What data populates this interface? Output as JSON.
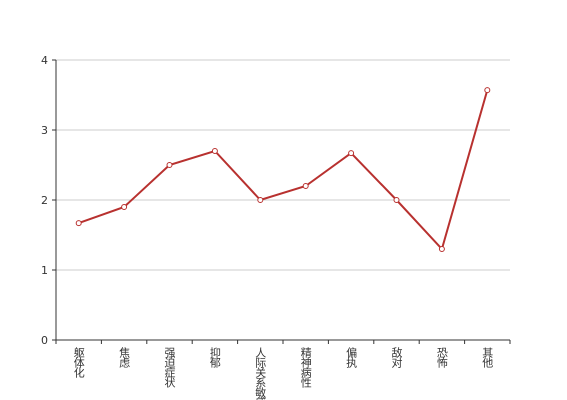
{
  "chart_data": {
    "type": "line",
    "categories": [
      "躯体化",
      "焦虑",
      "强迫症状",
      "抑郁",
      "人际关系敏感",
      "精神病性",
      "偏执",
      "敌对",
      "恐怖",
      "其他"
    ],
    "series": [
      {
        "color": "#b8312f",
        "values": [
          1.67,
          1.9,
          2.5,
          2.7,
          2.0,
          2.2,
          2.67,
          2.0,
          1.3,
          3.57
        ]
      }
    ],
    "ylim": [
      0,
      4
    ],
    "yticks": [
      0,
      1,
      2,
      3,
      4
    ],
    "grid": true
  }
}
